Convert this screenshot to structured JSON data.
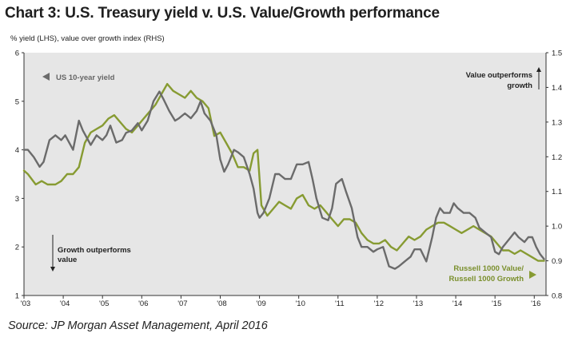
{
  "title": "Chart 3:  U.S. Treasury yield v. U.S. Value/Growth performance",
  "subtitle": "% yield (LHS), value over growth index (RHS)",
  "source": "Source:  JP Morgan Asset Management, April 2016",
  "colors": {
    "background": "#e6e6e6",
    "treasury": "#6b6b6b",
    "russell": "#879b32",
    "gridline": "#ffffff"
  },
  "chart_data": {
    "type": "line",
    "x_ticks": [
      "'03",
      "'04",
      "'05",
      "'06",
      "'07",
      "'08",
      "'09",
      "'10",
      "'11",
      "'12",
      "'13",
      "'14",
      "'15",
      "'16"
    ],
    "x_range": [
      2003.0,
      2016.3
    ],
    "y_left": {
      "range": [
        1,
        6
      ],
      "ticks": [
        "1",
        "2",
        "3",
        "4",
        "5",
        "6"
      ],
      "label": "% yield (LHS)"
    },
    "y_right": {
      "range": [
        0.8,
        1.5
      ],
      "ticks": [
        "0.8",
        "0.9",
        "1.0",
        "1.1",
        "1.2",
        "1.3",
        "1.4",
        "1.5"
      ],
      "label": "value over growth index (RHS)"
    },
    "annotations": {
      "treasury_label": "US 10-year yield",
      "value_outperforms": [
        "Value outperforms",
        "growth"
      ],
      "growth_outperforms": [
        "Growth outperforms",
        "value"
      ],
      "russell_label": [
        "Russell 1000 Value/",
        "Russell 1000 Growth"
      ]
    },
    "series": [
      {
        "name": "US 10-year yield",
        "axis": "left",
        "x": [
          2003.0,
          2003.1,
          2003.25,
          2003.4,
          2003.5,
          2003.65,
          2003.8,
          2003.95,
          2004.05,
          2004.25,
          2004.4,
          2004.5,
          2004.7,
          2004.85,
          2005.0,
          2005.1,
          2005.2,
          2005.35,
          2005.5,
          2005.6,
          2005.75,
          2005.9,
          2006.0,
          2006.15,
          2006.3,
          2006.45,
          2006.55,
          2006.7,
          2006.85,
          2006.95,
          2007.1,
          2007.25,
          2007.4,
          2007.5,
          2007.6,
          2007.75,
          2007.9,
          2008.0,
          2008.1,
          2008.2,
          2008.35,
          2008.45,
          2008.6,
          2008.75,
          2008.85,
          2008.95,
          2009.0,
          2009.1,
          2009.25,
          2009.4,
          2009.5,
          2009.65,
          2009.8,
          2009.95,
          2010.1,
          2010.25,
          2010.35,
          2010.45,
          2010.6,
          2010.75,
          2010.85,
          2010.95,
          2011.1,
          2011.2,
          2011.35,
          2011.5,
          2011.6,
          2011.75,
          2011.9,
          2012.0,
          2012.15,
          2012.3,
          2012.45,
          2012.55,
          2012.7,
          2012.85,
          2012.95,
          2013.1,
          2013.25,
          2013.4,
          2013.5,
          2013.6,
          2013.7,
          2013.85,
          2013.95,
          2014.05,
          2014.2,
          2014.35,
          2014.5,
          2014.6,
          2014.75,
          2014.9,
          2015.0,
          2015.1,
          2015.2,
          2015.35,
          2015.5,
          2015.6,
          2015.75,
          2015.85,
          2015.95,
          2016.05,
          2016.15,
          2016.25
        ],
        "values": [
          4.0,
          4.0,
          3.85,
          3.65,
          3.75,
          4.2,
          4.3,
          4.2,
          4.3,
          4.0,
          4.6,
          4.4,
          4.1,
          4.3,
          4.2,
          4.3,
          4.5,
          4.15,
          4.2,
          4.35,
          4.4,
          4.55,
          4.4,
          4.6,
          5.0,
          5.2,
          5.05,
          4.8,
          4.6,
          4.65,
          4.75,
          4.65,
          4.8,
          5.0,
          4.75,
          4.6,
          4.3,
          3.8,
          3.55,
          3.7,
          4.0,
          3.95,
          3.85,
          3.5,
          3.2,
          2.7,
          2.6,
          2.7,
          3.0,
          3.5,
          3.5,
          3.4,
          3.4,
          3.7,
          3.7,
          3.75,
          3.4,
          3.0,
          2.6,
          2.55,
          2.8,
          3.3,
          3.4,
          3.15,
          2.8,
          2.2,
          2.0,
          2.0,
          1.9,
          1.95,
          2.0,
          1.6,
          1.55,
          1.6,
          1.7,
          1.8,
          1.95,
          1.95,
          1.7,
          2.2,
          2.6,
          2.8,
          2.7,
          2.7,
          2.9,
          2.8,
          2.7,
          2.7,
          2.6,
          2.4,
          2.3,
          2.2,
          1.9,
          1.85,
          2.0,
          2.15,
          2.3,
          2.2,
          2.1,
          2.2,
          2.2,
          2.0,
          1.85,
          1.75
        ]
      },
      {
        "name": "Russell 1000 Value/Russell 1000 Growth",
        "axis": "right",
        "x": [
          2003.0,
          2003.1,
          2003.3,
          2003.45,
          2003.6,
          2003.8,
          2003.95,
          2004.1,
          2004.25,
          2004.4,
          2004.55,
          2004.7,
          2004.85,
          2005.0,
          2005.15,
          2005.3,
          2005.45,
          2005.6,
          2005.75,
          2005.9,
          2006.05,
          2006.2,
          2006.35,
          2006.5,
          2006.65,
          2006.8,
          2006.95,
          2007.1,
          2007.25,
          2007.4,
          2007.55,
          2007.7,
          2007.85,
          2008.0,
          2008.15,
          2008.3,
          2008.45,
          2008.6,
          2008.75,
          2008.85,
          2008.95,
          2009.05,
          2009.2,
          2009.35,
          2009.5,
          2009.65,
          2009.8,
          2009.95,
          2010.1,
          2010.25,
          2010.4,
          2010.55,
          2010.7,
          2010.85,
          2011.0,
          2011.15,
          2011.3,
          2011.45,
          2011.6,
          2011.75,
          2011.9,
          2012.05,
          2012.2,
          2012.35,
          2012.5,
          2012.65,
          2012.8,
          2012.95,
          2013.1,
          2013.25,
          2013.4,
          2013.55,
          2013.7,
          2013.85,
          2014.0,
          2014.15,
          2014.3,
          2014.45,
          2014.6,
          2014.75,
          2014.9,
          2015.05,
          2015.2,
          2015.35,
          2015.5,
          2015.65,
          2015.8,
          2015.95,
          2016.1,
          2016.25
        ],
        "values": [
          1.16,
          1.15,
          1.12,
          1.13,
          1.12,
          1.12,
          1.13,
          1.15,
          1.15,
          1.17,
          1.24,
          1.27,
          1.28,
          1.29,
          1.31,
          1.32,
          1.3,
          1.28,
          1.27,
          1.29,
          1.31,
          1.33,
          1.35,
          1.38,
          1.41,
          1.39,
          1.38,
          1.37,
          1.39,
          1.37,
          1.36,
          1.34,
          1.26,
          1.27,
          1.24,
          1.21,
          1.17,
          1.17,
          1.16,
          1.21,
          1.22,
          1.06,
          1.03,
          1.05,
          1.07,
          1.06,
          1.05,
          1.08,
          1.09,
          1.06,
          1.05,
          1.06,
          1.04,
          1.02,
          1.0,
          1.02,
          1.02,
          1.01,
          0.98,
          0.96,
          0.95,
          0.95,
          0.96,
          0.94,
          0.93,
          0.95,
          0.97,
          0.96,
          0.97,
          0.99,
          1.0,
          1.01,
          1.01,
          1.0,
          0.99,
          0.98,
          0.99,
          1.0,
          0.99,
          0.98,
          0.97,
          0.95,
          0.93,
          0.93,
          0.92,
          0.93,
          0.92,
          0.91,
          0.9,
          0.9
        ]
      }
    ]
  }
}
